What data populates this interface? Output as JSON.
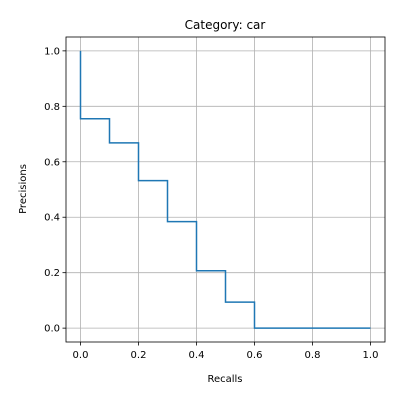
{
  "chart_data": {
    "type": "line",
    "step": "post",
    "title": "Category: car",
    "xlabel": "Recalls",
    "ylabel": "Precisions",
    "xlim": [
      -0.05,
      1.05
    ],
    "ylim": [
      -0.05,
      1.05
    ],
    "xticks": [
      "0.0",
      "0.2",
      "0.4",
      "0.6",
      "0.8",
      "1.0"
    ],
    "yticks": [
      "0.0",
      "0.2",
      "0.4",
      "0.6",
      "0.8",
      "1.0"
    ],
    "grid": true,
    "line_color": "#1f77b4",
    "series": [
      {
        "x": [
          0.0,
          0.0,
          0.1,
          0.2,
          0.3,
          0.4,
          0.5,
          0.6,
          1.0
        ],
        "y": [
          1.0,
          0.755,
          0.668,
          0.532,
          0.384,
          0.207,
          0.094,
          0.0,
          0.0
        ]
      }
    ]
  }
}
